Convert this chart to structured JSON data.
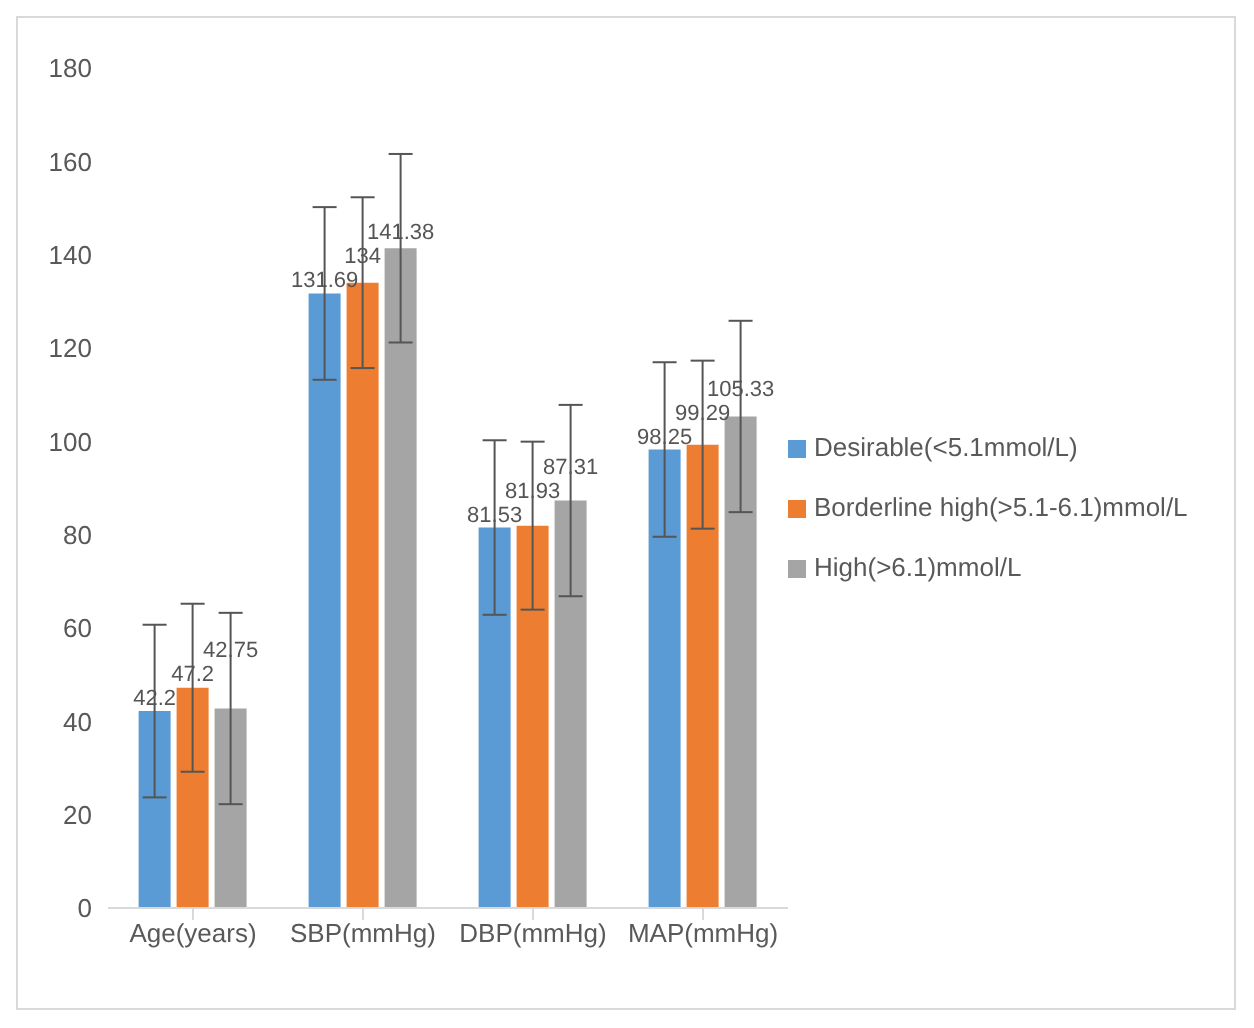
{
  "chart_data": {
    "type": "bar",
    "categories": [
      "Age(years)",
      "SBP(mmHg)",
      "DBP(mmHg)",
      "MAP(mmHg)"
    ],
    "series": [
      {
        "name": "Desirable(<5.1mmol/L)",
        "color": "#5b9bd5",
        "values": [
          42.2,
          131.69,
          81.53,
          98.25
        ],
        "errors": [
          18.5,
          18.5,
          18.7,
          18.7
        ]
      },
      {
        "name": "Borderline high(>5.1-6.1)mmol/L",
        "color": "#ed7d31",
        "values": [
          47.2,
          134,
          81.93,
          99.29
        ],
        "errors": [
          18,
          18.3,
          18,
          18
        ]
      },
      {
        "name": "High(>6.1)mmol/L",
        "color": "#a5a5a5",
        "values": [
          42.75,
          141.38,
          87.31,
          105.33
        ],
        "errors": [
          20.5,
          20.2,
          20.5,
          20.5
        ]
      }
    ],
    "ylim": [
      0,
      180
    ],
    "yticks": [
      0,
      20,
      40,
      60,
      80,
      100,
      120,
      140,
      160,
      180
    ],
    "grid": false,
    "legend": "right",
    "data_labels": true
  }
}
